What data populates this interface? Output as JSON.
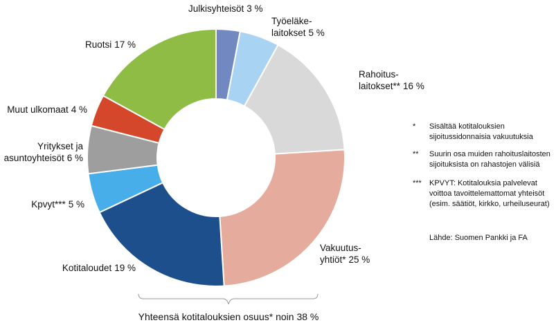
{
  "chart_data": {
    "type": "donut",
    "categories": [
      "Julkisyhteisöt",
      "Työeläke-\nlaitokset",
      "Rahoitus-\nlaitokset**",
      "Vakuutus-\nyhtiöt*",
      "Kotitaloudet",
      "Kpvyt***",
      "Yritykset ja\nasuntoyhteisöt",
      "Muut ulkomaat",
      "Ruotsi"
    ],
    "values": [
      3,
      5,
      16,
      25,
      19,
      5,
      6,
      4,
      17
    ],
    "value_labels": [
      "3 %",
      "5 %",
      "16 %",
      "25 %",
      "19 %",
      "5 %",
      "6 %",
      "4 %",
      "17 %"
    ],
    "colors": [
      "#7189c0",
      "#a9d3f3",
      "#d9d9d9",
      "#e5ab9c",
      "#1d4f8c",
      "#48aee9",
      "#9e9e9e",
      "#d5472a",
      "#8fbc45"
    ],
    "annotation": "Yhteensä kotitalouksien osuus* noin 38 %",
    "notes": [
      {
        "marker": "*",
        "text": "Sisältää kotitalouksien\nsijoitussidonnaisia vakuutuksia"
      },
      {
        "marker": "**",
        "text": "Suurin osa muiden rahoituslaitosten\nsijoituksista on rahastojen välisiä"
      },
      {
        "marker": "***",
        "text": "KPVYT: Kotitalouksia palvelevat\nvoittoa tavoittelemattomat yhteisöt\n(esim. säätiöt, kirkko, urheiluseurat)"
      }
    ],
    "source": "Lähde: Suomen Pankki ja FA"
  }
}
